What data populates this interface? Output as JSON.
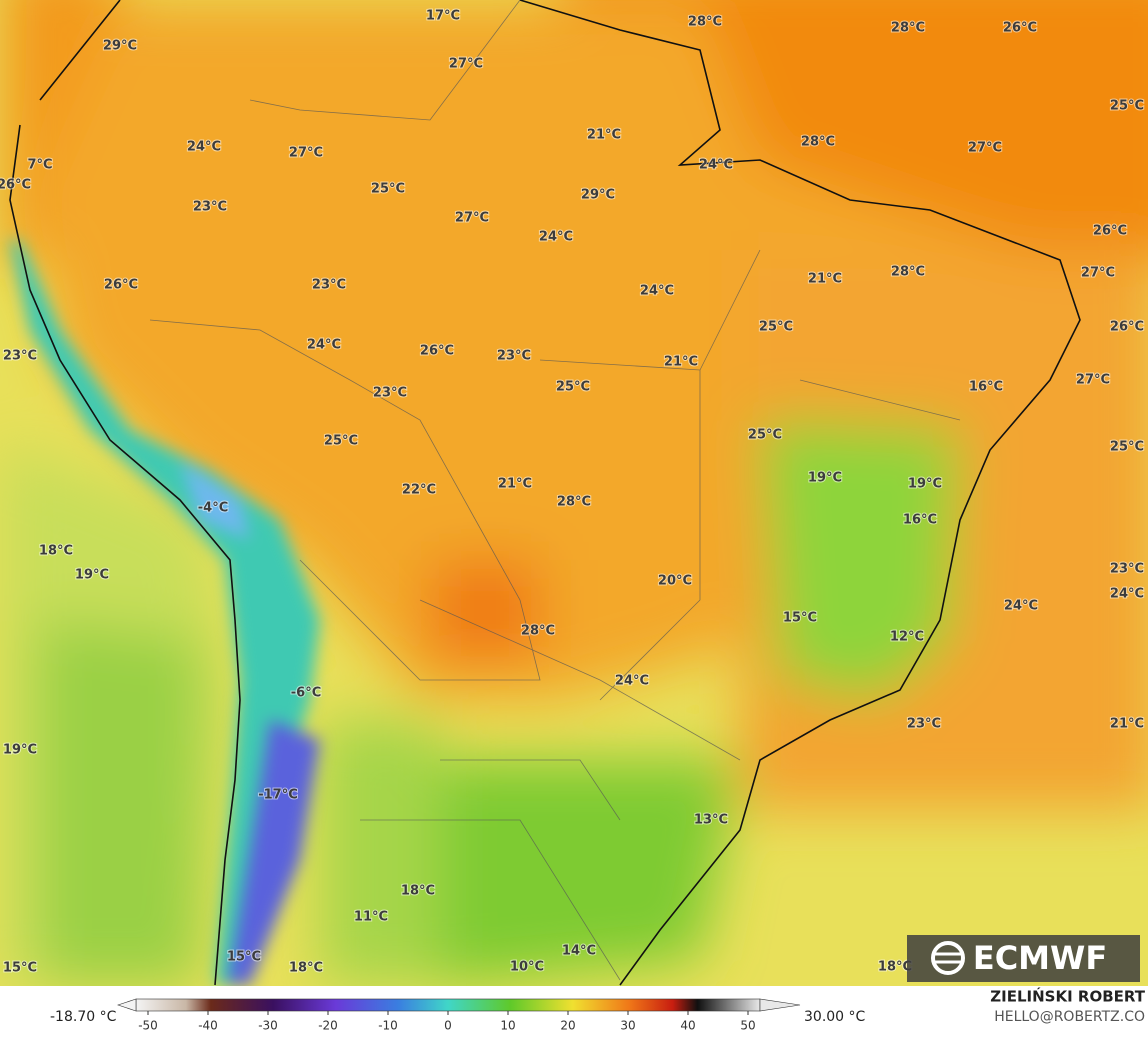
{
  "map": {
    "labels": [
      "17°C",
      "28°C",
      "28°C",
      "26°C",
      "29°C",
      "27°C",
      "25°C",
      "21°C",
      "28°C",
      "27°C",
      "24°C",
      "27°C",
      "24°C",
      "7°C",
      "26°C",
      "25°C",
      "29°C",
      "23°C",
      "27°C",
      "24°C",
      "26°C",
      "27°C",
      "21°C",
      "28°C",
      "26°C",
      "23°C",
      "24°C",
      "26°C",
      "25°C",
      "24°C",
      "26°C",
      "23°C",
      "23°C",
      "21°C",
      "27°C",
      "25°C",
      "16°C",
      "23°C",
      "25°C",
      "25°C",
      "25°C",
      "19°C",
      "19°C",
      "21°C",
      "22°C",
      "28°C",
      "-4°C",
      "16°C",
      "18°C",
      "19°C",
      "23°C",
      "20°C",
      "24°C",
      "24°C",
      "15°C",
      "28°C",
      "12°C",
      "24°C",
      "-6°C",
      "23°C",
      "21°C",
      "19°C",
      "-17°C",
      "13°C",
      "18°C",
      "11°C",
      "14°C",
      "15°C",
      "15°C",
      "18°C",
      "10°C",
      "18°C"
    ]
  },
  "colorbar": {
    "min_label": "-18.70 °C",
    "max_label": "30.00 °C",
    "lim": [
      -52,
      52
    ],
    "ticks": [
      -50,
      -40,
      -30,
      -20,
      -10,
      0,
      10,
      20,
      30,
      40,
      50
    ]
  },
  "credit": {
    "logo": "ECMWF",
    "author": "ZIELIŃSKI ROBERT",
    "contact": "HELLO@ROBERTZ.CO"
  }
}
